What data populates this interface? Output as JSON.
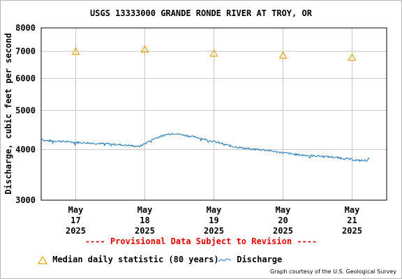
{
  "chart_data": {
    "type": "line",
    "title": "USGS 13333000 GRANDE RONDE RIVER AT TROY, OR",
    "ylabel": "Discharge, cubic feet per second",
    "xlabel": "",
    "y_scale": "log",
    "ylim": [
      3000,
      8000
    ],
    "y_ticks": [
      3000,
      4000,
      5000,
      6000,
      7000,
      8000
    ],
    "xlim": [
      "2025-05-16 12:00",
      "2025-05-21 12:00"
    ],
    "x_ticks": [
      {
        "date": "2025-05-17",
        "month": "May",
        "day": "17",
        "year": "2025"
      },
      {
        "date": "2025-05-18",
        "month": "May",
        "day": "18",
        "year": "2025"
      },
      {
        "date": "2025-05-19",
        "month": "May",
        "day": "19",
        "year": "2025"
      },
      {
        "date": "2025-05-20",
        "month": "May",
        "day": "20",
        "year": "2025"
      },
      {
        "date": "2025-05-21",
        "month": "May",
        "day": "21",
        "year": "2025"
      }
    ],
    "grid": true,
    "series": [
      {
        "name": "Median daily statistic (80 years)",
        "kind": "marker",
        "color": "#e8a000",
        "marker": "triangle-open",
        "points": [
          {
            "x": "2025-05-17",
            "y": 6990
          },
          {
            "x": "2025-05-18",
            "y": 7080
          },
          {
            "x": "2025-05-19",
            "y": 6920
          },
          {
            "x": "2025-05-20",
            "y": 6840
          },
          {
            "x": "2025-05-21",
            "y": 6760
          }
        ]
      },
      {
        "name": "Discharge",
        "kind": "line",
        "color": "#1f78b4",
        "points": [
          {
            "x": "2025-05-16 12:00",
            "y": 4280
          },
          {
            "x": "2025-05-16 13:00",
            "y": 4210
          },
          {
            "x": "2025-05-16 18:00",
            "y": 4200
          },
          {
            "x": "2025-05-17 00:00",
            "y": 4170
          },
          {
            "x": "2025-05-17 06:00",
            "y": 4150
          },
          {
            "x": "2025-05-17 12:00",
            "y": 4130
          },
          {
            "x": "2025-05-17 18:00",
            "y": 4100
          },
          {
            "x": "2025-05-17 22:00",
            "y": 4070
          },
          {
            "x": "2025-05-18 00:00",
            "y": 4140
          },
          {
            "x": "2025-05-18 03:00",
            "y": 4250
          },
          {
            "x": "2025-05-18 06:00",
            "y": 4330
          },
          {
            "x": "2025-05-18 08:00",
            "y": 4370
          },
          {
            "x": "2025-05-18 10:00",
            "y": 4390
          },
          {
            "x": "2025-05-18 14:00",
            "y": 4340
          },
          {
            "x": "2025-05-18 18:00",
            "y": 4290
          },
          {
            "x": "2025-05-19 00:00",
            "y": 4190
          },
          {
            "x": "2025-05-19 06:00",
            "y": 4080
          },
          {
            "x": "2025-05-19 12:00",
            "y": 4020
          },
          {
            "x": "2025-05-19 18:00",
            "y": 3990
          },
          {
            "x": "2025-05-20 00:00",
            "y": 3930
          },
          {
            "x": "2025-05-20 06:00",
            "y": 3880
          },
          {
            "x": "2025-05-20 12:00",
            "y": 3860
          },
          {
            "x": "2025-05-20 18:00",
            "y": 3830
          },
          {
            "x": "2025-05-21 00:00",
            "y": 3780
          },
          {
            "x": "2025-05-21 02:00",
            "y": 3760
          },
          {
            "x": "2025-05-21 05:00",
            "y": 3760
          },
          {
            "x": "2025-05-21 06:00",
            "y": 3800
          }
        ]
      }
    ]
  },
  "notice": "---- Provisional Data Subject to Revision ----",
  "legend": {
    "median_label": "Median daily statistic (80 years)",
    "discharge_label": "Discharge"
  },
  "credit": "Graph courtesy of the U.S. Geological Survey",
  "colors": {
    "median": "#e8a000",
    "discharge": "#1f78b4",
    "notice": "#e00000",
    "grid": "#c8c8c8"
  }
}
